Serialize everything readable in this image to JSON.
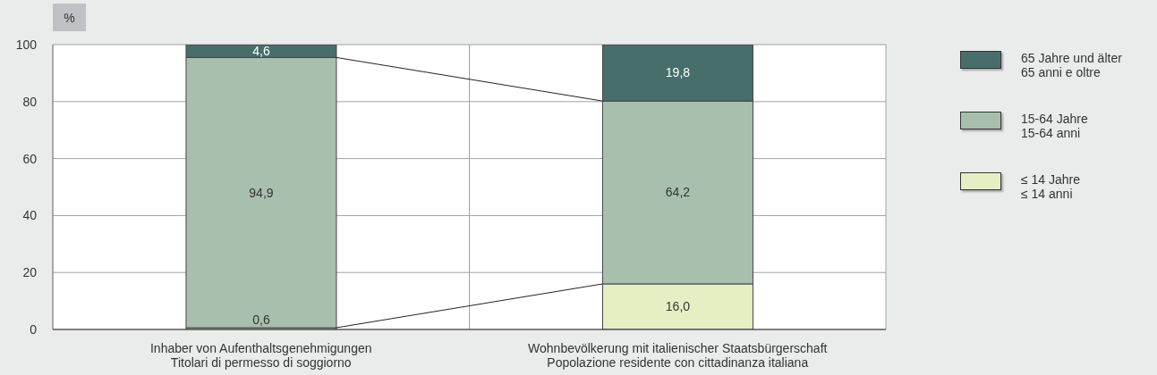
{
  "chart_data": {
    "type": "bar",
    "stacked": true,
    "ylabel": "%",
    "categories": [
      "Inhaber von Aufenthaltsgenehmigungen\nTitolari di permesso di soggiorno",
      "Wohnbevölkerung mit italienischer Staatsbürgerschaft\nPopolazione residente con cittadinanza italiana"
    ],
    "series": [
      {
        "name": "≤ 14 Jahre\n≤ 14 anni",
        "color": "#e6efc4",
        "values": [
          0.6,
          16.0
        ],
        "value_labels": [
          "0,6",
          "16,0"
        ]
      },
      {
        "name": "15-64 Jahre\n15-64 anni",
        "color": "#a8bfae",
        "values": [
          94.9,
          64.2
        ],
        "value_labels": [
          "94,9",
          "64,2"
        ]
      },
      {
        "name": "65 Jahre und älter\n65 anni e oltre",
        "color": "#476e6b",
        "values": [
          4.6,
          19.8
        ],
        "value_labels": [
          "4,6",
          "19,8"
        ]
      }
    ],
    "ylim": [
      0,
      100
    ],
    "yticks": [
      0,
      20,
      40,
      60,
      80,
      100
    ],
    "grid": true,
    "legend": "right"
  }
}
